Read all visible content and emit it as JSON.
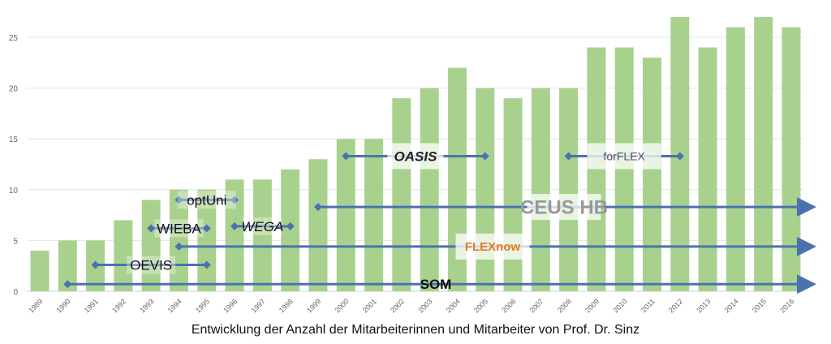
{
  "chart_data": {
    "type": "bar",
    "title": "Entwicklung der Anzahl der Mitarbeiterinnen und Mitarbeiter von Prof. Dr. Sinz",
    "xlabel": "",
    "ylabel": "",
    "ylim": [
      0,
      27.5
    ],
    "yticks": [
      0,
      5,
      10,
      15,
      20,
      25
    ],
    "grid": true,
    "bar_color": "#a9d18e",
    "categories": [
      "1989",
      "1990",
      "1991",
      "1992",
      "1993",
      "1994",
      "1995",
      "1996",
      "1997",
      "1998",
      "1999",
      "2000",
      "2001",
      "2002",
      "2003",
      "2004",
      "2005",
      "2006",
      "2007",
      "2008",
      "2009",
      "2010",
      "2011",
      "2012",
      "2013",
      "2014",
      "2015",
      "2016"
    ],
    "values": [
      4,
      5,
      5,
      7,
      9,
      10,
      10,
      11,
      11,
      12,
      13,
      15,
      15,
      19,
      20,
      22,
      20,
      19,
      20,
      20,
      24,
      24,
      23,
      27,
      24,
      26,
      27,
      26
    ],
    "timeline_color": "#4a72b0",
    "projects": [
      {
        "name": "SOM",
        "start": 1990,
        "end": "ongoing",
        "level": 0.7,
        "style": "bold"
      },
      {
        "name": "OEVIS",
        "start": 1991,
        "end": 1995,
        "level": 2.6,
        "style": "normal"
      },
      {
        "name": "FLEXnow",
        "start": 1994,
        "end": "ongoing",
        "level": 4.4,
        "style": "logo"
      },
      {
        "name": "WIEBA",
        "start": 1993,
        "end": 1995,
        "level": 6.2,
        "style": "normal"
      },
      {
        "name": "WEGA",
        "start": 1996,
        "end": 1998,
        "level": 6.4,
        "style": "italic"
      },
      {
        "name": "optUni",
        "start": 1994,
        "end": 1996,
        "level": 9.0,
        "style": "normal"
      },
      {
        "name": "CEUS HB",
        "start": 1999,
        "end": "ongoing",
        "level": 8.3,
        "style": "logo"
      },
      {
        "name": "OASIS",
        "start": 2000,
        "end": 2005,
        "level": 13.3,
        "style": "logo"
      },
      {
        "name": "forFLEX",
        "start": 2008,
        "end": 2012,
        "level": 13.3,
        "style": "logo"
      }
    ]
  }
}
